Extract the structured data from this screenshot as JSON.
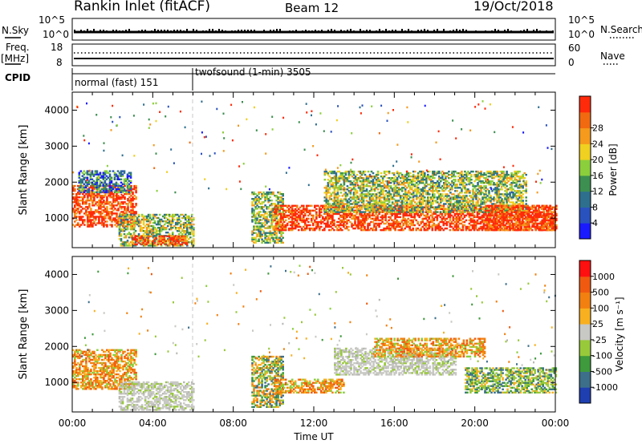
{
  "header": {
    "station": "Rankin Inlet (fitACF)",
    "beam": "Beam 12",
    "date": "19/Oct/2018"
  },
  "params": {
    "nsky_label": "N.Sky",
    "nsearch_label": "N.Search",
    "nsky_ticks": [
      "10^5",
      "10^0"
    ],
    "nsearch_ticks": [
      "10^5",
      "10^0"
    ],
    "freq_label_1": "Freq.",
    "freq_label_2": "[MHz]",
    "freq_ticks": [
      "18",
      "8"
    ],
    "nave_label": "Nave",
    "nave_ticks": [
      "60",
      "0"
    ],
    "cpid_label": "CPID",
    "cpid_modes": [
      {
        "name": "normal (fast) 151",
        "start_hour": 0
      },
      {
        "name": "twofsound (1-min) 3505",
        "start_hour": 6
      }
    ]
  },
  "chart_data": [
    {
      "type": "heatmap",
      "name": "power-panel",
      "ylabel": "Slant Range [km]",
      "xlabel": "",
      "x_range_hours": [
        0,
        24
      ],
      "y_range_km": [
        180,
        4500
      ],
      "yticks": [
        "1000",
        "2000",
        "3000",
        "4000"
      ],
      "colorbar": {
        "label": "Power [dB]",
        "ticks": [
          "4",
          "8",
          "12",
          "16",
          "20",
          "24",
          "28"
        ],
        "colors": [
          "#1a1aff",
          "#2a52be",
          "#2e6f8e",
          "#3c8f50",
          "#8bcf3c",
          "#f0d020",
          "#f59a1c",
          "#f26a10",
          "#ff2a0a"
        ]
      },
      "echo_regions": [
        {
          "t0": 0.0,
          "t1": 3.2,
          "r0": 750,
          "r1": 1900,
          "level": "high"
        },
        {
          "t0": 0.3,
          "t1": 2.9,
          "r0": 1700,
          "r1": 2300,
          "level": "low"
        },
        {
          "t0": 2.3,
          "t1": 6.0,
          "r0": 220,
          "r1": 1100,
          "level": "mid"
        },
        {
          "t0": 3.0,
          "t1": 5.7,
          "r0": 250,
          "r1": 500,
          "level": "high"
        },
        {
          "t0": 8.9,
          "t1": 10.5,
          "r0": 300,
          "r1": 1700,
          "level": "mid"
        },
        {
          "t0": 10.0,
          "t1": 24.0,
          "r0": 650,
          "r1": 1350,
          "level": "high"
        },
        {
          "t0": 12.5,
          "t1": 22.5,
          "r0": 1150,
          "r1": 2300,
          "level": "mid"
        },
        {
          "t0": 20.5,
          "t1": 24.0,
          "r0": 650,
          "r1": 1350,
          "level": "high"
        }
      ]
    },
    {
      "type": "heatmap",
      "name": "velocity-panel",
      "ylabel": "Slant Range [km]",
      "xlabel": "Time UT",
      "x_range_hours": [
        0,
        24
      ],
      "y_range_km": [
        180,
        4500
      ],
      "yticks": [
        "1000",
        "2000",
        "3000",
        "4000"
      ],
      "xticks": [
        "00:00",
        "04:00",
        "08:00",
        "12:00",
        "16:00",
        "20:00",
        "00:00"
      ],
      "colorbar": {
        "label": "Velocity [m s⁻¹]",
        "ticks": [
          "1000",
          "500",
          "100",
          "25",
          "-25",
          "-100",
          "-500",
          "-1000"
        ],
        "colors": [
          "#1f3fb0",
          "#3d6f8a",
          "#3e9a3c",
          "#98c93a",
          "#c8c8c4",
          "#f8b020",
          "#f28010",
          "#ef5a10",
          "#ff1010"
        ]
      },
      "echo_regions": [
        {
          "t0": 0.0,
          "t1": 3.2,
          "r0": 800,
          "r1": 1900,
          "level": "away"
        },
        {
          "t0": 2.3,
          "t1": 6.0,
          "r0": 220,
          "r1": 1000,
          "level": "ground"
        },
        {
          "t0": 8.9,
          "t1": 10.5,
          "r0": 300,
          "r1": 1700,
          "level": "mixed"
        },
        {
          "t0": 10.0,
          "t1": 13.5,
          "r0": 700,
          "r1": 1100,
          "level": "away"
        },
        {
          "t0": 13.0,
          "t1": 19.0,
          "r0": 1200,
          "r1": 1950,
          "level": "ground"
        },
        {
          "t0": 15.0,
          "t1": 20.5,
          "r0": 1700,
          "r1": 2200,
          "level": "away"
        },
        {
          "t0": 19.5,
          "t1": 24.0,
          "r0": 700,
          "r1": 1400,
          "level": "toward"
        }
      ]
    }
  ]
}
